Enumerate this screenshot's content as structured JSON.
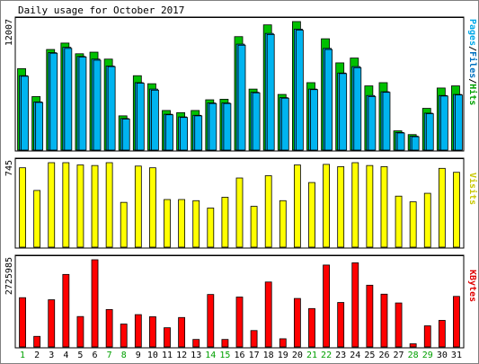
{
  "chart_data": {
    "type": "bar",
    "title": "Daily usage for October 2017",
    "days": [
      "1",
      "2",
      "3",
      "4",
      "5",
      "6",
      "7",
      "8",
      "9",
      "10",
      "11",
      "12",
      "13",
      "14",
      "15",
      "16",
      "17",
      "18",
      "19",
      "20",
      "21",
      "22",
      "23",
      "24",
      "25",
      "26",
      "27",
      "28",
      "29",
      "30",
      "31"
    ],
    "weekend_days": [
      "1",
      "7",
      "8",
      "14",
      "15",
      "21",
      "22",
      "28",
      "29"
    ],
    "panels": [
      {
        "name": "hits-files-pages",
        "ylabel_max": "12007",
        "ylim": [
          0,
          12007
        ],
        "legend": [
          "Pages",
          "Files",
          "Hits"
        ],
        "series": [
          {
            "name": "Hits",
            "color": "#00c000",
            "values": [
              7610,
              5000,
              9400,
              10000,
              9000,
              9150,
              8500,
              3200,
              6950,
              6200,
              3700,
              3500,
              3700,
              4700,
              4750,
              10600,
              5700,
              11700,
              5200,
              12007,
              6300,
              10400,
              8150,
              8600,
              6000,
              6300,
              1800,
              1450,
              3900,
              5800,
              6000
            ]
          },
          {
            "name": "Files",
            "color": "#00a8e8",
            "values": [
              6950,
              4500,
              9100,
              9600,
              8750,
              8500,
              7850,
              2950,
              6300,
              5700,
              3350,
              3100,
              3250,
              4400,
              4400,
              9900,
              5400,
              10900,
              4900,
              11300,
              5700,
              9500,
              7200,
              7800,
              5100,
              5450,
              1650,
              1300,
              3450,
              5100,
              5200
            ]
          },
          {
            "name": "Pages",
            "color": "#00a8e8",
            "values": [
              6900,
              4450,
              9050,
              9500,
              8700,
              8400,
              7800,
              2900,
              6250,
              5600,
              3300,
              3050,
              3200,
              4350,
              4350,
              9800,
              5350,
              10800,
              4850,
              11200,
              5650,
              9400,
              7150,
              7700,
              5000,
              5400,
              1600,
              1250,
              3400,
              5050,
              5150
            ]
          }
        ]
      },
      {
        "name": "visits",
        "ylabel_max": "745",
        "ylim": [
          0,
          745
        ],
        "legend": [
          "Visits"
        ],
        "series": [
          {
            "name": "Visits",
            "color": "#ffff00",
            "values": [
              700,
              500,
              745,
              745,
              725,
              720,
              745,
              395,
              715,
              700,
              420,
              420,
              410,
              345,
              440,
              610,
              360,
              630,
              410,
              725,
              570,
              730,
              710,
              745,
              720,
              710,
              450,
              400,
              475,
              695,
              660
            ]
          }
        ]
      },
      {
        "name": "kbytes",
        "ylabel_max": "2725985",
        "ylim": [
          0,
          2725985
        ],
        "legend": [
          "KBytes"
        ],
        "series": [
          {
            "name": "KBytes",
            "color": "#ff0000",
            "values": [
              1540000,
              330000,
              1475000,
              2267000,
              950000,
              2725985,
              1170000,
              715000,
              1010000,
              945000,
              600000,
              920000,
              234000,
              1640000,
              234000,
              1560000,
              512000,
              2030000,
              255000,
              1515000,
              1200000,
              2560000,
              1390000,
              2630000,
              1930000,
              1650000,
              1375000,
              98000,
              660000,
              830000,
              1580000
            ]
          }
        ]
      }
    ]
  }
}
